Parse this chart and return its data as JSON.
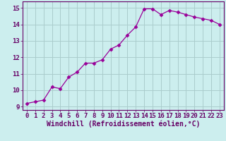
{
  "x": [
    0,
    1,
    2,
    3,
    4,
    5,
    6,
    7,
    8,
    9,
    10,
    11,
    12,
    13,
    14,
    15,
    16,
    17,
    18,
    19,
    20,
    21,
    22,
    23
  ],
  "y": [
    9.2,
    9.3,
    9.4,
    10.2,
    10.1,
    10.8,
    11.1,
    11.65,
    11.65,
    11.85,
    12.5,
    12.75,
    13.35,
    13.85,
    14.95,
    14.95,
    14.6,
    14.85,
    14.75,
    14.6,
    14.45,
    14.35,
    14.25,
    14.0
  ],
  "line_color": "#990099",
  "marker": "D",
  "marker_size": 2.5,
  "bg_color": "#cceeee",
  "grid_color": "#aacccc",
  "tick_color": "#660066",
  "label_color": "#660066",
  "xlabel": "Windchill (Refroidissement éolien,°C)",
  "ylim": [
    8.8,
    15.4
  ],
  "yticks": [
    9,
    10,
    11,
    12,
    13,
    14,
    15
  ],
  "xlim": [
    -0.5,
    23.5
  ],
  "xticks": [
    0,
    1,
    2,
    3,
    4,
    5,
    6,
    7,
    8,
    9,
    10,
    11,
    12,
    13,
    14,
    15,
    16,
    17,
    18,
    19,
    20,
    21,
    22,
    23
  ],
  "font_size": 6.5,
  "xlabel_font_size": 7.0
}
